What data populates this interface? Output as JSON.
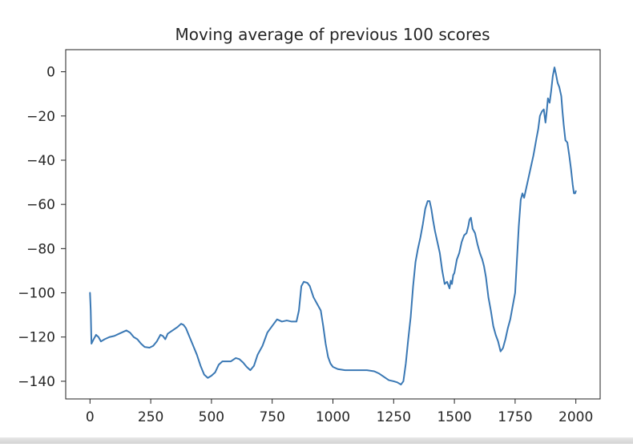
{
  "chart_data": {
    "type": "line",
    "title": "Moving average of previous 100 scores",
    "xlabel": "",
    "ylabel": "",
    "xlim": [
      -100,
      2100
    ],
    "ylim": [
      -148,
      10
    ],
    "x_ticks": [
      0,
      250,
      500,
      750,
      1000,
      1250,
      1500,
      1750,
      2000
    ],
    "x_tick_labels": [
      "0",
      "250",
      "500",
      "750",
      "1000",
      "1250",
      "1500",
      "1750",
      "2000"
    ],
    "y_ticks": [
      0,
      -20,
      -40,
      -60,
      -80,
      -100,
      -120,
      -140
    ],
    "y_tick_labels": [
      "0",
      "−20",
      "−40",
      "−60",
      "−80",
      "−100",
      "−120",
      "−140"
    ],
    "grid": false,
    "line_color": "#3a78b4",
    "series": [
      {
        "points": [
          [
            0,
            -100
          ],
          [
            3,
            -108
          ],
          [
            6,
            -123
          ],
          [
            15,
            -121
          ],
          [
            25,
            -119
          ],
          [
            35,
            -120
          ],
          [
            45,
            -122
          ],
          [
            60,
            -121
          ],
          [
            80,
            -120
          ],
          [
            100,
            -119.5
          ],
          [
            120,
            -118.5
          ],
          [
            140,
            -117.5
          ],
          [
            150,
            -117
          ],
          [
            165,
            -118
          ],
          [
            180,
            -120
          ],
          [
            195,
            -121
          ],
          [
            210,
            -123
          ],
          [
            225,
            -124.5
          ],
          [
            245,
            -124.8
          ],
          [
            260,
            -124
          ],
          [
            275,
            -122
          ],
          [
            290,
            -119
          ],
          [
            300,
            -119.5
          ],
          [
            310,
            -121
          ],
          [
            320,
            -118.5
          ],
          [
            340,
            -117
          ],
          [
            360,
            -115.5
          ],
          [
            375,
            -114
          ],
          [
            385,
            -114.5
          ],
          [
            395,
            -116
          ],
          [
            410,
            -120
          ],
          [
            425,
            -124
          ],
          [
            440,
            -128
          ],
          [
            455,
            -133
          ],
          [
            470,
            -137
          ],
          [
            485,
            -138.5
          ],
          [
            500,
            -137.5
          ],
          [
            515,
            -136
          ],
          [
            530,
            -132.5
          ],
          [
            545,
            -131
          ],
          [
            560,
            -131
          ],
          [
            580,
            -131
          ],
          [
            600,
            -129.5
          ],
          [
            615,
            -130
          ],
          [
            630,
            -131.5
          ],
          [
            645,
            -133.5
          ],
          [
            660,
            -135
          ],
          [
            675,
            -133
          ],
          [
            690,
            -128
          ],
          [
            710,
            -124
          ],
          [
            730,
            -118
          ],
          [
            750,
            -115
          ],
          [
            770,
            -112
          ],
          [
            790,
            -113
          ],
          [
            810,
            -112.5
          ],
          [
            830,
            -113
          ],
          [
            850,
            -113
          ],
          [
            860,
            -108
          ],
          [
            870,
            -97
          ],
          [
            880,
            -95
          ],
          [
            895,
            -95.5
          ],
          [
            905,
            -97
          ],
          [
            920,
            -102
          ],
          [
            935,
            -105
          ],
          [
            950,
            -108
          ],
          [
            960,
            -115
          ],
          [
            970,
            -123
          ],
          [
            980,
            -129
          ],
          [
            990,
            -132
          ],
          [
            1000,
            -133.5
          ],
          [
            1020,
            -134.5
          ],
          [
            1050,
            -135
          ],
          [
            1080,
            -135
          ],
          [
            1110,
            -135
          ],
          [
            1140,
            -135
          ],
          [
            1170,
            -135.5
          ],
          [
            1190,
            -136.5
          ],
          [
            1210,
            -138
          ],
          [
            1230,
            -139.5
          ],
          [
            1250,
            -140
          ],
          [
            1265,
            -140.5
          ],
          [
            1280,
            -141.5
          ],
          [
            1290,
            -140
          ],
          [
            1300,
            -132
          ],
          [
            1310,
            -121
          ],
          [
            1320,
            -111
          ],
          [
            1330,
            -97
          ],
          [
            1340,
            -86
          ],
          [
            1350,
            -80
          ],
          [
            1360,
            -75
          ],
          [
            1370,
            -69
          ],
          [
            1380,
            -62
          ],
          [
            1390,
            -58.5
          ],
          [
            1398,
            -58.5
          ],
          [
            1405,
            -62
          ],
          [
            1412,
            -67
          ],
          [
            1420,
            -72
          ],
          [
            1430,
            -77
          ],
          [
            1440,
            -82
          ],
          [
            1450,
            -90
          ],
          [
            1460,
            -96
          ],
          [
            1470,
            -95
          ],
          [
            1480,
            -98
          ],
          [
            1485,
            -94.5
          ],
          [
            1490,
            -96
          ],
          [
            1495,
            -92
          ],
          [
            1500,
            -91
          ],
          [
            1505,
            -88
          ],
          [
            1510,
            -85
          ],
          [
            1520,
            -82
          ],
          [
            1530,
            -77
          ],
          [
            1540,
            -74
          ],
          [
            1550,
            -73
          ],
          [
            1557,
            -70
          ],
          [
            1562,
            -67
          ],
          [
            1568,
            -66
          ],
          [
            1575,
            -71
          ],
          [
            1585,
            -73
          ],
          [
            1595,
            -78
          ],
          [
            1605,
            -82
          ],
          [
            1615,
            -85
          ],
          [
            1622,
            -88
          ],
          [
            1630,
            -93
          ],
          [
            1640,
            -102
          ],
          [
            1650,
            -108
          ],
          [
            1660,
            -115
          ],
          [
            1670,
            -119
          ],
          [
            1680,
            -122
          ],
          [
            1690,
            -126.5
          ],
          [
            1700,
            -125
          ],
          [
            1710,
            -121
          ],
          [
            1720,
            -116
          ],
          [
            1730,
            -112
          ],
          [
            1740,
            -106
          ],
          [
            1750,
            -100
          ],
          [
            1757,
            -86
          ],
          [
            1765,
            -70
          ],
          [
            1773,
            -58
          ],
          [
            1780,
            -55
          ],
          [
            1787,
            -57
          ],
          [
            1795,
            -53
          ],
          [
            1805,
            -48
          ],
          [
            1815,
            -43
          ],
          [
            1825,
            -38
          ],
          [
            1830,
            -35
          ],
          [
            1838,
            -30
          ],
          [
            1845,
            -26
          ],
          [
            1852,
            -20
          ],
          [
            1860,
            -18
          ],
          [
            1868,
            -17
          ],
          [
            1875,
            -23
          ],
          [
            1880,
            -18
          ],
          [
            1885,
            -12
          ],
          [
            1892,
            -14
          ],
          [
            1898,
            -9
          ],
          [
            1905,
            -2
          ],
          [
            1912,
            2
          ],
          [
            1918,
            -1
          ],
          [
            1925,
            -5
          ],
          [
            1932,
            -7
          ],
          [
            1940,
            -11
          ],
          [
            1945,
            -18
          ],
          [
            1950,
            -24
          ],
          [
            1957,
            -31
          ],
          [
            1965,
            -32
          ],
          [
            1973,
            -38
          ],
          [
            1980,
            -44
          ],
          [
            1987,
            -51
          ],
          [
            1992,
            -55
          ],
          [
            1997,
            -55
          ],
          [
            2000,
            -54
          ]
        ]
      }
    ]
  }
}
